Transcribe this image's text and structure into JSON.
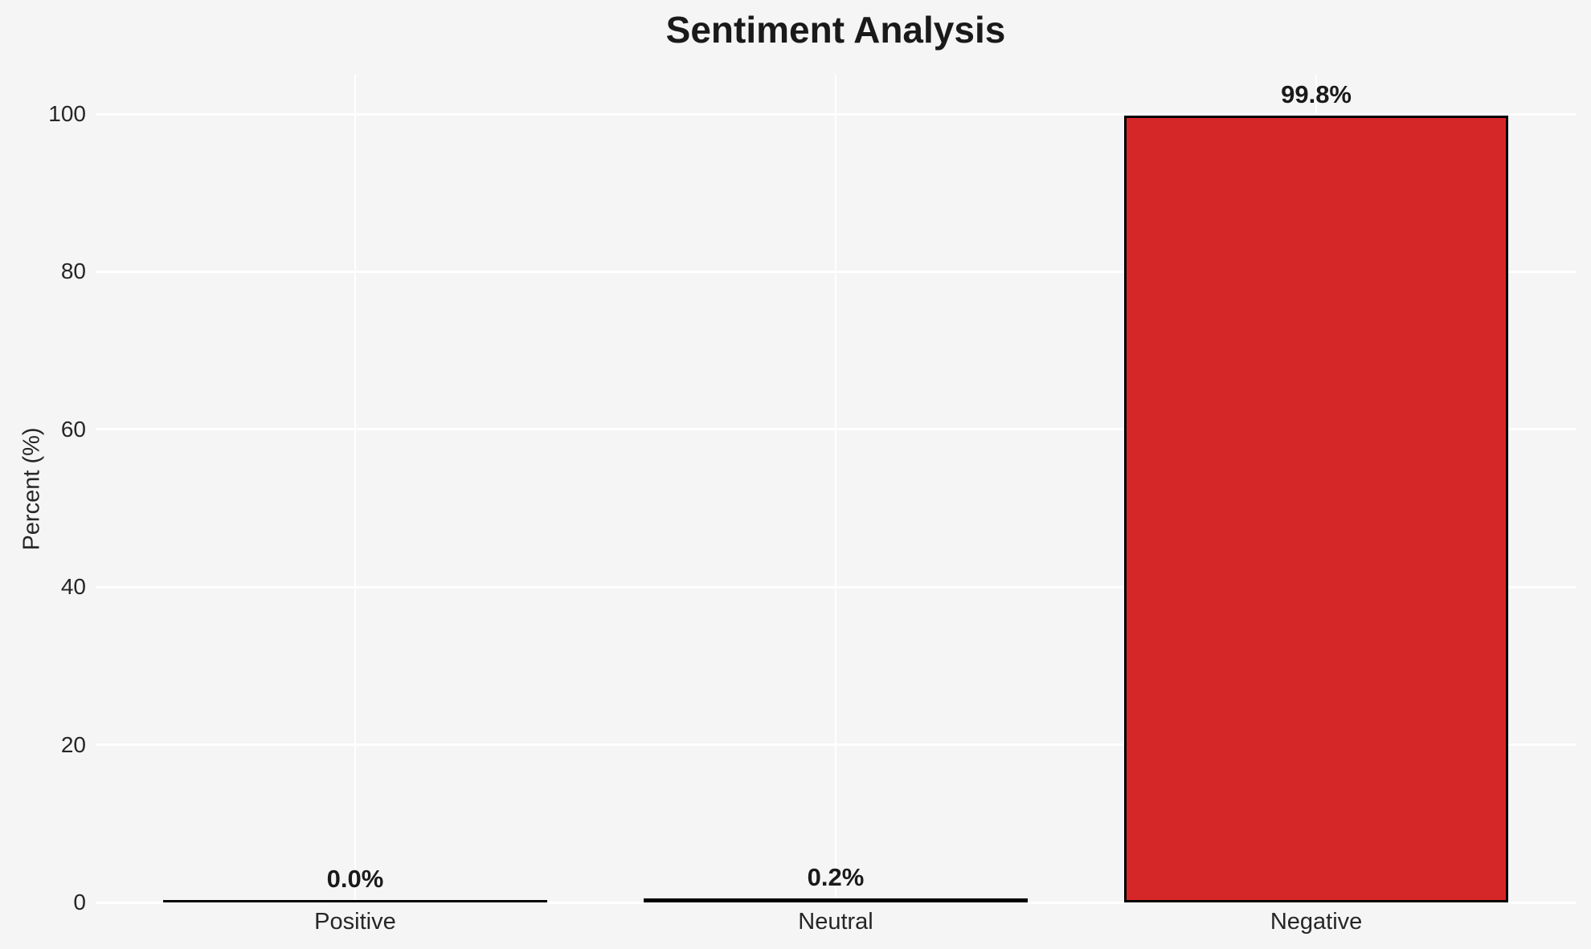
{
  "chart_data": {
    "type": "bar",
    "title": "Sentiment Analysis",
    "ylabel": "Percent (%)",
    "xlabel": "",
    "categories": [
      "Positive",
      "Neutral",
      "Negative"
    ],
    "values": [
      0.0,
      0.2,
      99.8
    ],
    "value_labels": [
      "0.0%",
      "0.2%",
      "99.8%"
    ],
    "yticks": [
      0,
      20,
      40,
      60,
      80,
      100
    ],
    "ylim": [
      0,
      105
    ],
    "xlim": [
      -0.54,
      2.54
    ],
    "bar_width": 0.8,
    "grid": "on",
    "legend": "none",
    "colors": {
      "background": "#f5f5f5",
      "gridline": "#ffffff",
      "bar_fill": "#d62728",
      "bar_edge": "#000000",
      "title_text": "#1a1a1a",
      "label_text": "#262626"
    }
  }
}
